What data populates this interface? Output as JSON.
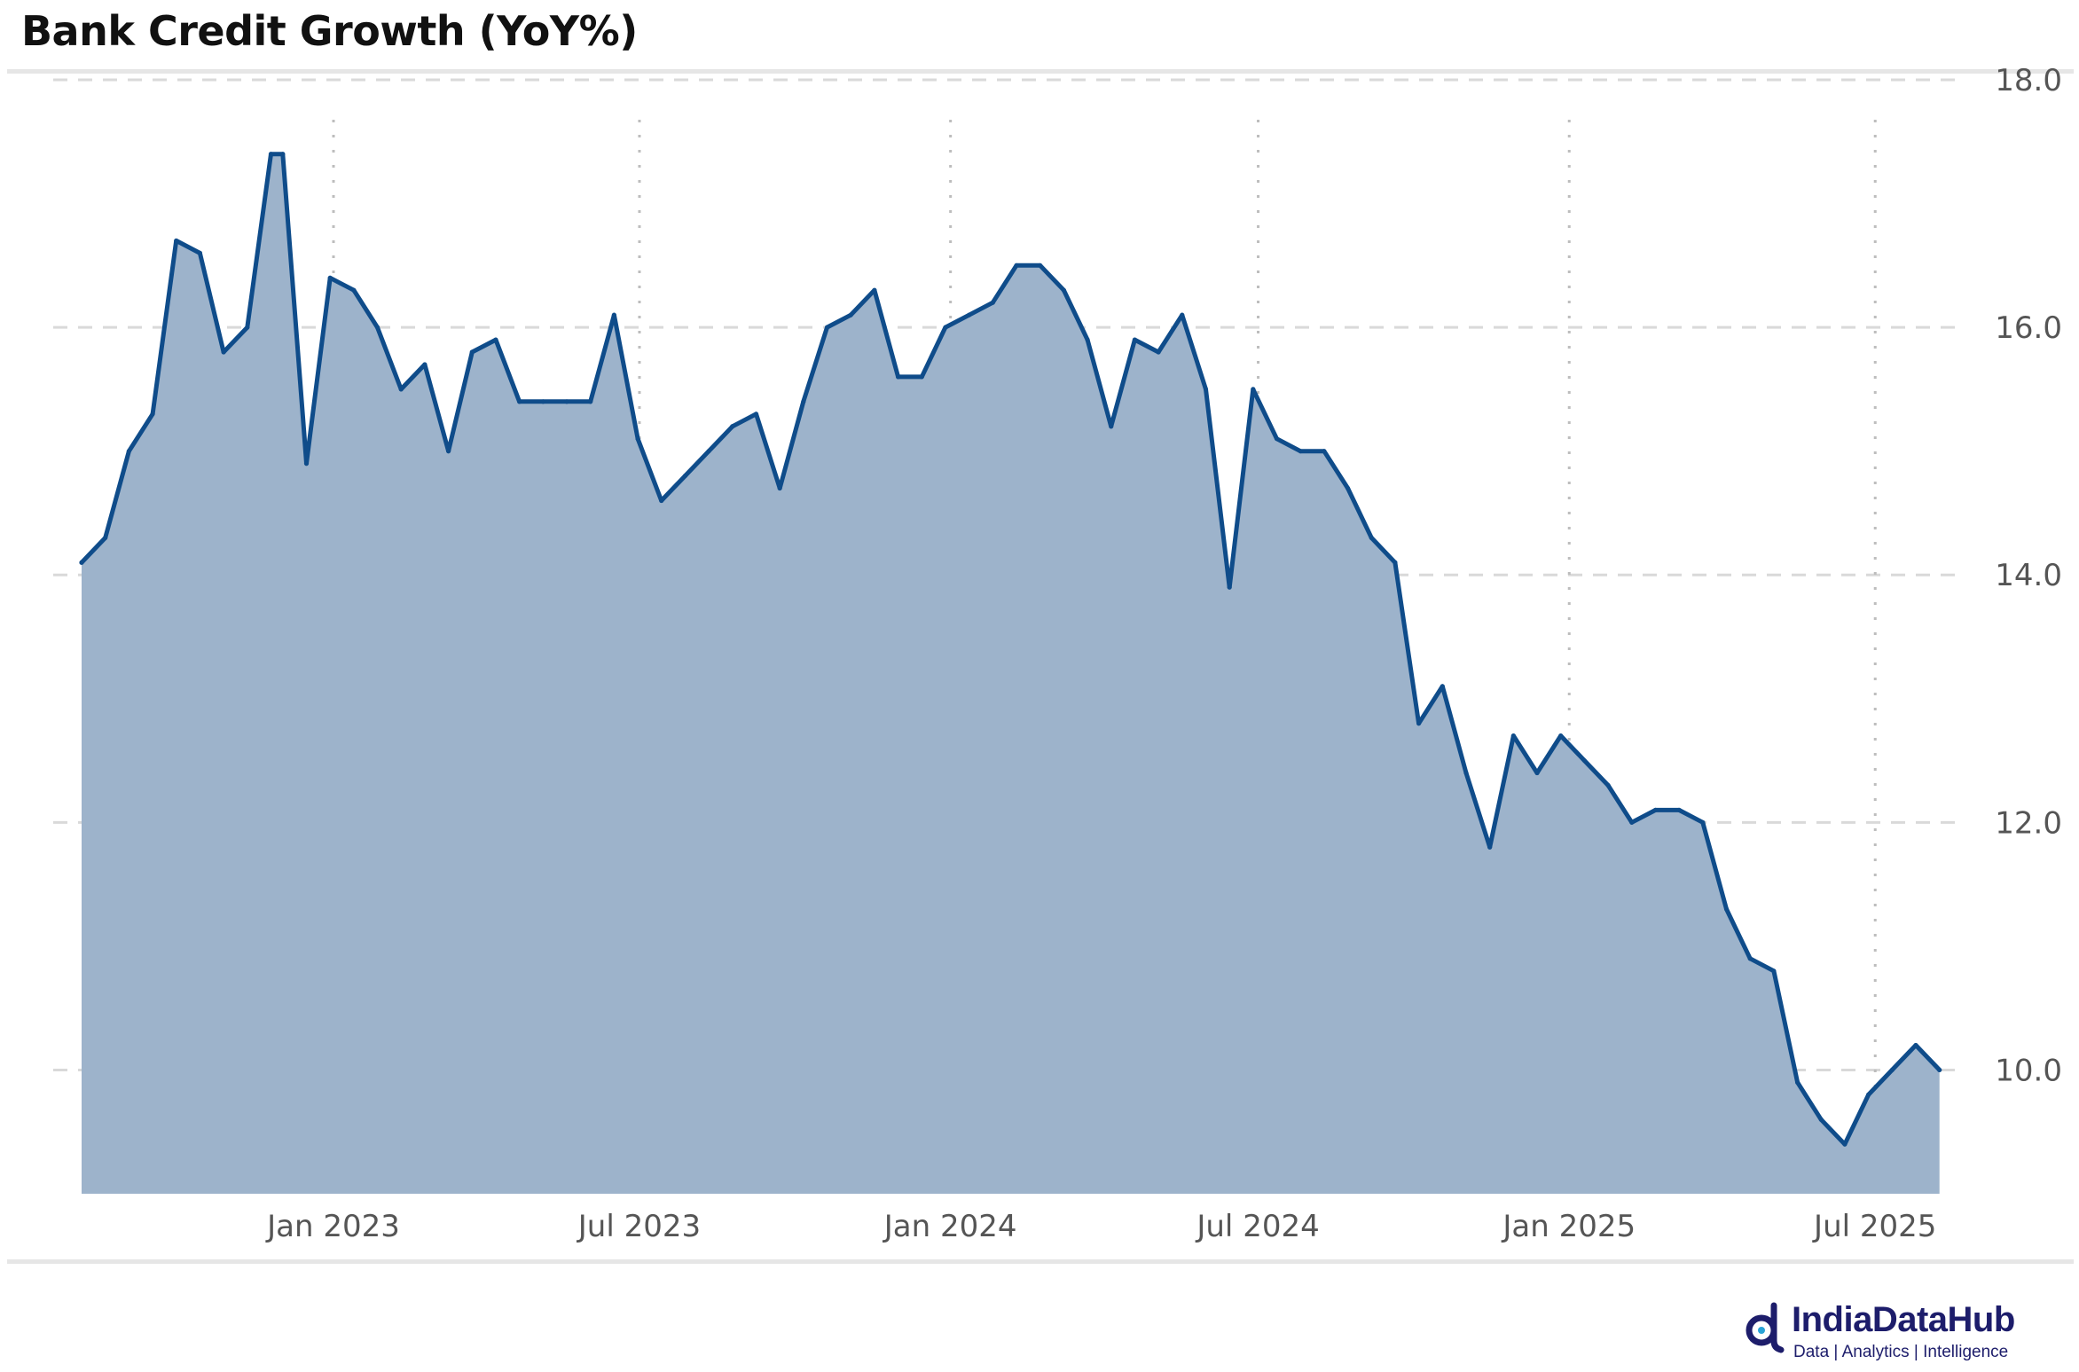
{
  "chart_data": {
    "type": "area",
    "title": "Bank Credit Growth (YoY%)",
    "xlabel": "",
    "ylabel": "",
    "ylim": [
      9.0,
      18.0
    ],
    "yticks": [
      "10.0",
      "12.0",
      "14.0",
      "16.0",
      "18.0"
    ],
    "xticks": [
      "Jan 2023",
      "Jul 2023",
      "Jan 2024",
      "Jul 2024",
      "Jan 2025",
      "Jul 2025"
    ],
    "xrange": [
      "2022-08-05",
      "2025-08-15"
    ],
    "grid": true,
    "legend": "none",
    "colors": {
      "line": "#0f4c8a",
      "fill": "#9db3cb",
      "grid": "#d9d9d9"
    },
    "series": [
      {
        "x": [
          "2022-08-05",
          "2022-08-19",
          "2022-09-02",
          "2022-09-16",
          "2022-09-30",
          "2022-10-14",
          "2022-10-28",
          "2022-11-11",
          "2022-11-25",
          "2022-12-02",
          "2022-12-16",
          "2022-12-30",
          "2023-01-13",
          "2023-01-27",
          "2023-02-10",
          "2023-02-24",
          "2023-03-10",
          "2023-03-24",
          "2023-04-07",
          "2023-04-21",
          "2023-05-05",
          "2023-05-19",
          "2023-06-02",
          "2023-06-16",
          "2023-06-30",
          "2023-07-14",
          "2023-07-28",
          "2023-08-11",
          "2023-08-25",
          "2023-09-08",
          "2023-09-22",
          "2023-10-06",
          "2023-10-20",
          "2023-11-03",
          "2023-11-17",
          "2023-12-01",
          "2023-12-15",
          "2023-12-29",
          "2024-01-12",
          "2024-01-26",
          "2024-02-09",
          "2024-02-23",
          "2024-03-08",
          "2024-03-22",
          "2024-04-05",
          "2024-04-19",
          "2024-05-03",
          "2024-05-17",
          "2024-05-31",
          "2024-06-14",
          "2024-06-28",
          "2024-07-12",
          "2024-07-26",
          "2024-08-09",
          "2024-08-23",
          "2024-09-06",
          "2024-09-20",
          "2024-10-04",
          "2024-10-18",
          "2024-11-01",
          "2024-11-15",
          "2024-11-29",
          "2024-12-13",
          "2024-12-27",
          "2025-01-10",
          "2025-01-24",
          "2025-02-07",
          "2025-02-21",
          "2025-03-07",
          "2025-03-21",
          "2025-04-04",
          "2025-04-18",
          "2025-05-02",
          "2025-05-16",
          "2025-05-30",
          "2025-06-13",
          "2025-06-27",
          "2025-07-11",
          "2025-07-25",
          "2025-08-08"
        ],
        "y": [
          14.1,
          14.3,
          15.0,
          15.3,
          16.7,
          16.6,
          15.8,
          16.0,
          17.4,
          17.4,
          14.9,
          16.4,
          16.3,
          16.0,
          15.5,
          15.7,
          15.0,
          15.8,
          15.9,
          15.4,
          15.4,
          15.4,
          15.4,
          16.1,
          15.1,
          14.6,
          14.8,
          15.0,
          15.2,
          15.3,
          14.7,
          15.4,
          16.0,
          16.1,
          16.3,
          15.6,
          15.6,
          16.0,
          16.1,
          16.2,
          16.5,
          16.5,
          16.3,
          15.9,
          15.2,
          15.9,
          15.8,
          16.1,
          15.5,
          13.9,
          15.5,
          15.1,
          15.0,
          15.0,
          14.7,
          14.3,
          14.1,
          12.8,
          13.1,
          12.4,
          11.8,
          12.7,
          12.4,
          12.7,
          12.5,
          12.3,
          12.0,
          12.1,
          12.1,
          12.0,
          11.3,
          10.9,
          10.8,
          9.9,
          9.6,
          9.4,
          9.8,
          10.0,
          10.2,
          10.0
        ]
      }
    ]
  },
  "branding": {
    "name": "IndiaDataHub",
    "tagline": "Data | Analytics | Intelligence"
  }
}
